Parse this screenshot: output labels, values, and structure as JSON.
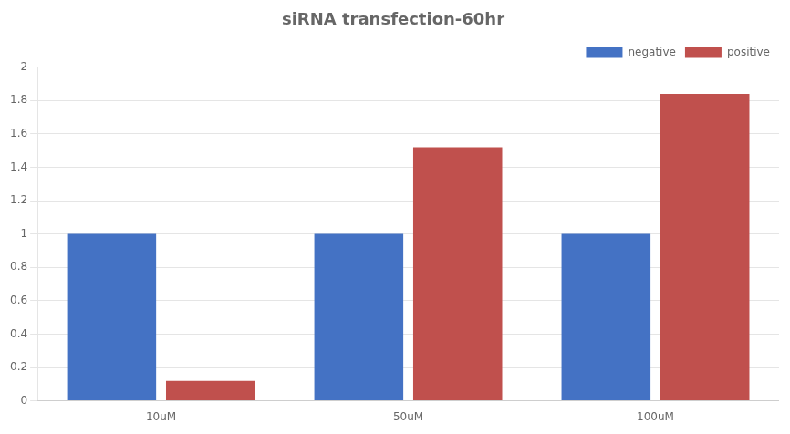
{
  "chart_data": {
    "type": "bar",
    "title": "siRNA transfection-60hr",
    "categories": [
      "10uM",
      "50uM",
      "100uM"
    ],
    "series": [
      {
        "name": "negative",
        "color": "#4472C4",
        "values": [
          1.0,
          1.0,
          1.0
        ]
      },
      {
        "name": "positive",
        "color": "#C0504D",
        "values": [
          0.12,
          1.52,
          1.84
        ]
      }
    ],
    "ylim": [
      0,
      2.0
    ],
    "yticks": [
      0,
      0.2,
      0.4,
      0.6,
      0.8,
      1,
      1.2,
      1.4,
      1.6,
      1.8,
      2
    ],
    "grid": true,
    "legend": "upper right"
  }
}
